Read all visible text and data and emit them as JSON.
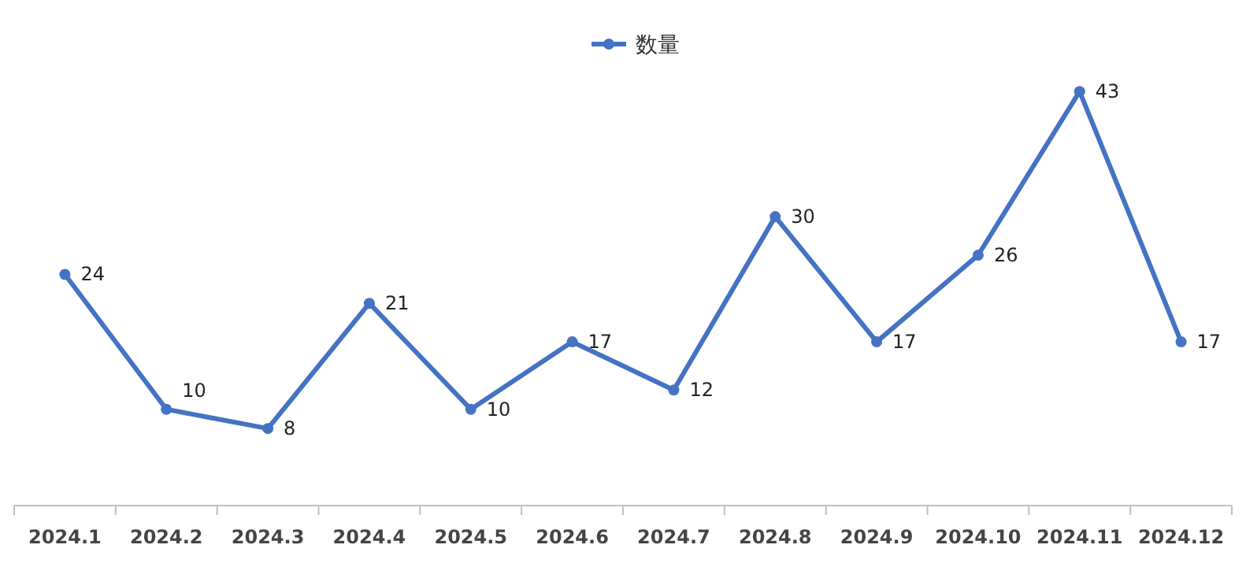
{
  "chart_data": {
    "type": "line",
    "categories": [
      "2024.1",
      "2024.2",
      "2024.3",
      "2024.4",
      "2024.5",
      "2024.6",
      "2024.7",
      "2024.8",
      "2024.9",
      "2024.10",
      "2024.11",
      "2024.12"
    ],
    "series": [
      {
        "name": "数量",
        "color": "#4472c4",
        "values": [
          24,
          10,
          8,
          21,
          10,
          17,
          12,
          30,
          17,
          26,
          43,
          17
        ]
      }
    ],
    "tick_labels": "x",
    "data_labels": true,
    "legend": "top",
    "marker": "circle",
    "line_style": "solid",
    "grid": false
  }
}
